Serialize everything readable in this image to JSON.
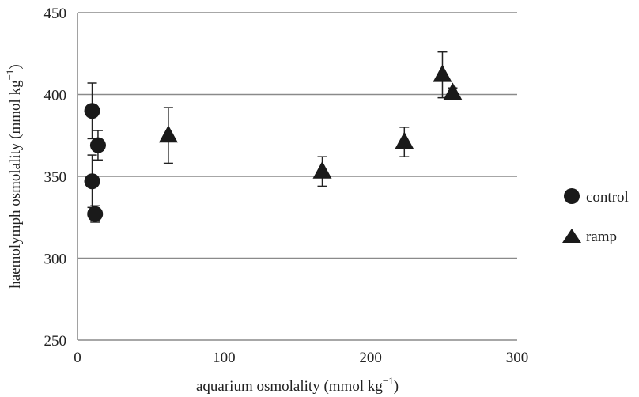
{
  "chart_data": {
    "type": "scatter",
    "title": "",
    "xlabel": "aquarium osmolality (mmol kg",
    "xlabel_sup": "−1",
    "xlabel_tail": ")",
    "ylabel": "haemolymph osmolality (mmol kg",
    "ylabel_sup": "−1",
    "ylabel_tail": ")",
    "xlim": [
      0,
      300
    ],
    "ylim": [
      250,
      450
    ],
    "xticks": [
      0,
      100,
      200,
      300
    ],
    "yticks": [
      250,
      300,
      350,
      400,
      450
    ],
    "grid": "horizontal",
    "legend_position": "right",
    "series": [
      {
        "name": "control",
        "marker": "circle",
        "points": [
          {
            "x": 10,
            "y": 390,
            "err": 17
          },
          {
            "x": 10,
            "y": 347,
            "err": 16
          },
          {
            "x": 14,
            "y": 369,
            "err": 9
          },
          {
            "x": 12,
            "y": 327,
            "err": 5
          }
        ]
      },
      {
        "name": "ramp",
        "marker": "triangle",
        "points": [
          {
            "x": 62,
            "y": 375,
            "err": 17
          },
          {
            "x": 167,
            "y": 353,
            "err": 9
          },
          {
            "x": 223,
            "y": 371,
            "err": 9
          },
          {
            "x": 249,
            "y": 412,
            "err": 14
          },
          {
            "x": 256,
            "y": 401,
            "err": 3
          }
        ]
      }
    ]
  }
}
